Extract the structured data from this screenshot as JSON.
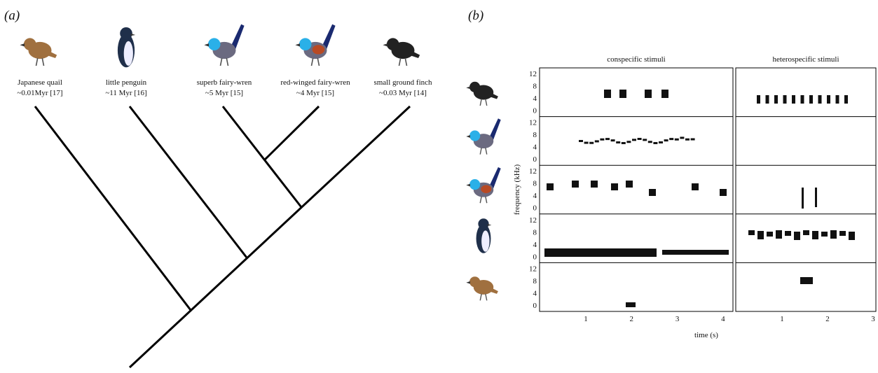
{
  "panel_a": {
    "label": "(a)",
    "species": [
      {
        "name": "Japanese quail",
        "time": "~0.01Myr [17]"
      },
      {
        "name": "little penguin",
        "time": "~11 Myr [16]"
      },
      {
        "name": "superb fairy-wren",
        "time": "~5 Myr [15]"
      },
      {
        "name": "red-winged fairy-wren",
        "time": "~4 Myr [15]"
      },
      {
        "name": "small ground finch",
        "time": "~0.03 Myr [14]"
      }
    ]
  },
  "panel_b": {
    "label": "(b)",
    "columns": [
      "conspecific stimuli",
      "heterospecific stimuli"
    ],
    "y_label": "frequency (kHz)",
    "x_label": "time (s)",
    "y_tick_labels": [
      "12",
      "8",
      "4",
      "0"
    ],
    "x_tick_labels_conspecific": [
      "1",
      "2",
      "3",
      "4"
    ],
    "x_tick_labels_heterospecific": [
      "1",
      "2",
      "3"
    ]
  }
}
